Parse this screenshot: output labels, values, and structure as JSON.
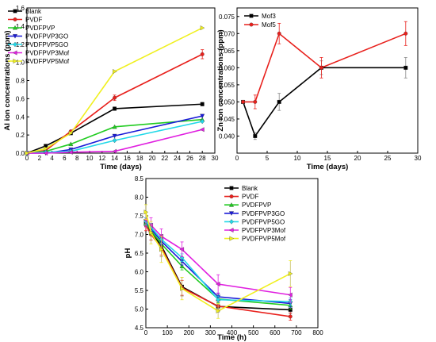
{
  "chart_data": [
    {
      "id": "al",
      "type": "line",
      "xlabel": "Time (days)",
      "ylabel": "Al ion concentrations (ppm)",
      "xlim": [
        0,
        30
      ],
      "ylim": [
        0,
        1.6
      ],
      "xticks": [
        0,
        2,
        4,
        6,
        8,
        10,
        12,
        14,
        16,
        18,
        20,
        22,
        24,
        26,
        28,
        30
      ],
      "yticks": [
        "0.0",
        "0.2",
        "0.4",
        "0.6",
        "0.8",
        "1.0",
        "1.2",
        "1.4",
        "1.6"
      ],
      "legend_position": "top-left",
      "series": [
        {
          "name": "Blank",
          "color": "#000000",
          "marker": "square",
          "x": [
            0,
            3,
            7,
            14,
            28
          ],
          "y": [
            0.0,
            0.08,
            0.22,
            0.49,
            0.54
          ],
          "err": [
            0,
            0,
            0,
            0.02,
            0.02
          ]
        },
        {
          "name": "PVDF",
          "color": "#e8201c",
          "marker": "circle",
          "x": [
            0,
            3,
            7,
            14,
            28
          ],
          "y": [
            0.0,
            0.03,
            0.24,
            0.61,
            1.09
          ],
          "err": [
            0,
            0,
            0,
            0.03,
            0.05
          ]
        },
        {
          "name": "PVDFPVP",
          "color": "#22cc22",
          "marker": "triangle-up",
          "x": [
            0,
            3,
            7,
            14,
            28
          ],
          "y": [
            0.0,
            0.02,
            0.1,
            0.29,
            0.37
          ],
          "err": [
            0,
            0,
            0,
            0,
            0
          ]
        },
        {
          "name": "PVDFPVP3GO",
          "color": "#1a1ad8",
          "marker": "triangle-down",
          "x": [
            0,
            3,
            7,
            14,
            28
          ],
          "y": [
            0.0,
            0.0,
            0.04,
            0.19,
            0.41
          ],
          "err": [
            0,
            0,
            0,
            0,
            0
          ]
        },
        {
          "name": "PVDFPVP5GO",
          "color": "#22d8e8",
          "marker": "diamond",
          "x": [
            0,
            3,
            7,
            14,
            28
          ],
          "y": [
            0.0,
            0.01,
            0.02,
            0.14,
            0.35
          ],
          "err": [
            0,
            0,
            0,
            0,
            0
          ]
        },
        {
          "name": "PVDFPVP3Mof",
          "color": "#e020e0",
          "marker": "triangle-left",
          "x": [
            0,
            3,
            7,
            14,
            28
          ],
          "y": [
            0.0,
            0.0,
            0.01,
            0.02,
            0.26
          ],
          "err": [
            0,
            0,
            0,
            0,
            0
          ]
        },
        {
          "name": "PVDFPVP5Mof",
          "color": "#f0f020",
          "marker": "triangle-right",
          "x": [
            0,
            3,
            7,
            14,
            28
          ],
          "y": [
            0.0,
            0.05,
            0.22,
            0.9,
            1.38
          ],
          "err": [
            0,
            0,
            0,
            0,
            0
          ]
        }
      ]
    },
    {
      "id": "zn",
      "type": "line",
      "xlabel": "Time (days)",
      "ylabel": "Zn ion concentrations (ppm)",
      "xlim": [
        0,
        30
      ],
      "ylim": [
        0.035,
        0.0775
      ],
      "xticks": [
        0,
        5,
        10,
        15,
        20,
        25,
        30
      ],
      "yticks": [
        "0.040",
        "0.045",
        "0.050",
        "0.055",
        "0.060",
        "0.065",
        "0.070",
        "0.075"
      ],
      "legend_position": "top-left",
      "series": [
        {
          "name": "Mof3",
          "color": "#000000",
          "marker": "square",
          "x": [
            1,
            3,
            7,
            14,
            28
          ],
          "y": [
            0.05,
            0.04,
            0.05,
            0.06,
            0.06
          ],
          "err": [
            0,
            0.001,
            0.0025,
            0.002,
            0.003
          ]
        },
        {
          "name": "Mof5",
          "color": "#e8201c",
          "marker": "circle",
          "x": [
            1,
            3,
            7,
            14,
            28
          ],
          "y": [
            0.05,
            0.05,
            0.07,
            0.06,
            0.07
          ],
          "err": [
            0,
            0.002,
            0.003,
            0.003,
            0.0035
          ]
        }
      ]
    },
    {
      "id": "ph",
      "type": "line",
      "xlabel": "Time (h)",
      "ylabel": "pH",
      "xlim": [
        0,
        800
      ],
      "ylim": [
        4.5,
        8.5
      ],
      "xticks": [
        0,
        100,
        200,
        300,
        400,
        500,
        600,
        700,
        800
      ],
      "yticks": [
        "4.5",
        "5.0",
        "5.5",
        "6.0",
        "6.5",
        "7.0",
        "7.5",
        "8.0",
        "8.5"
      ],
      "legend_position": "top-right",
      "series": [
        {
          "name": "Blank",
          "color": "#000000",
          "marker": "square",
          "x": [
            0,
            24,
            72,
            168,
            336,
            672
          ],
          "y": [
            7.3,
            7.05,
            6.7,
            5.6,
            5.07,
            4.98
          ],
          "err": [
            0.1,
            0.2,
            0.3,
            0.25,
            0.15,
            0.1
          ]
        },
        {
          "name": "PVDF",
          "color": "#e8201c",
          "marker": "circle",
          "x": [
            0,
            24,
            72,
            168,
            336,
            672
          ],
          "y": [
            7.25,
            7.0,
            6.65,
            5.57,
            5.08,
            4.8
          ],
          "err": [
            0.15,
            0.15,
            0.2,
            0.2,
            0.1,
            0.1
          ]
        },
        {
          "name": "PVDFPVP",
          "color": "#22cc22",
          "marker": "triangle-up",
          "x": [
            0,
            24,
            72,
            168,
            336,
            672
          ],
          "y": [
            7.3,
            7.1,
            6.75,
            6.15,
            5.27,
            5.1
          ],
          "err": [
            0.1,
            0.1,
            0.1,
            0.1,
            0.1,
            0.1
          ]
        },
        {
          "name": "PVDFPVP3GO",
          "color": "#1a1ad8",
          "marker": "triangle-down",
          "x": [
            0,
            24,
            72,
            168,
            336,
            672
          ],
          "y": [
            7.35,
            7.15,
            6.82,
            6.28,
            5.33,
            5.15
          ],
          "err": [
            0.1,
            0.1,
            0.1,
            0.1,
            0.1,
            0.1
          ]
        },
        {
          "name": "PVDFPVP5GO",
          "color": "#22d8e8",
          "marker": "diamond",
          "x": [
            0,
            24,
            72,
            168,
            336,
            672
          ],
          "y": [
            7.35,
            7.2,
            6.87,
            6.38,
            5.25,
            5.2
          ],
          "err": [
            0.1,
            0.1,
            0.1,
            0.1,
            0.1,
            0.1
          ]
        },
        {
          "name": "PVDFPVP3Mof",
          "color": "#e020e0",
          "marker": "triangle-left",
          "x": [
            0,
            24,
            72,
            168,
            336,
            672
          ],
          "y": [
            7.4,
            7.25,
            6.95,
            6.6,
            5.67,
            5.38
          ],
          "err": [
            0.2,
            0.2,
            0.2,
            0.2,
            0.25,
            0.2
          ]
        },
        {
          "name": "PVDFPVP5Mof",
          "color": "#f0f020",
          "marker": "triangle-right",
          "x": [
            0,
            24,
            72,
            168,
            336,
            672
          ],
          "y": [
            7.6,
            7.05,
            6.6,
            5.55,
            4.95,
            5.95
          ],
          "err": [
            0.2,
            0.3,
            0.35,
            0.3,
            0.2,
            0.35
          ]
        }
      ]
    }
  ]
}
